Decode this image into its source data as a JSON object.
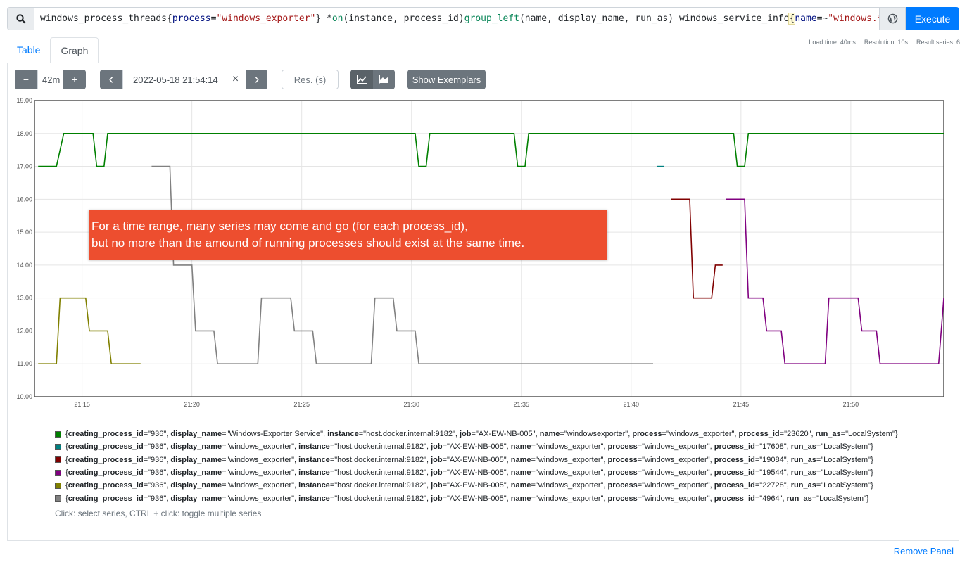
{
  "query": {
    "tokens": [
      {
        "t": "windows_process_threads ",
        "c": ""
      },
      {
        "t": "{",
        "c": ""
      },
      {
        "t": "process",
        "c": "q-lbl"
      },
      {
        "t": "=",
        "c": ""
      },
      {
        "t": "\"windows_exporter\"",
        "c": "q-str"
      },
      {
        "t": "} * ",
        "c": ""
      },
      {
        "t": "on",
        "c": "q-fn"
      },
      {
        "t": "(instance, process_id) ",
        "c": ""
      },
      {
        "t": "group_left",
        "c": "q-fn"
      },
      {
        "t": "(name, display_name, run_as) windows_service_info ",
        "c": ""
      },
      {
        "t": "{",
        "c": "q-brace"
      },
      {
        "t": "name",
        "c": "q-lbl"
      },
      {
        "t": "=~",
        "c": ""
      },
      {
        "t": "\"windows.*exporter\"",
        "c": "q-str"
      },
      {
        "t": "}",
        "c": "q-brace"
      }
    ],
    "execute_label": "Execute",
    "search_icon": "search-icon",
    "globe_icon": "globe-icon"
  },
  "tabs": [
    {
      "label": "Table",
      "active": false
    },
    {
      "label": "Graph",
      "active": true
    }
  ],
  "meta": {
    "load_time": "Load time: 40ms",
    "resolution": "Resolution: 10s",
    "result_series": "Result series: 6"
  },
  "controls": {
    "minus": "−",
    "range": "42m",
    "plus": "+",
    "prev": "‹",
    "end_time": "2022-05-18 21:54:14",
    "clear": "×",
    "next": "›",
    "res_placeholder": "Res. (s)",
    "line_icon": "line-chart-icon",
    "stacked_icon": "area-chart-icon",
    "exemplars": "Show Exemplars"
  },
  "callout": {
    "line1": "For a time range, many series may come and go (for each process_id),",
    "line2": "but no more than the amound of running processes should exist at the same time."
  },
  "chart_data": {
    "type": "line",
    "ylim": [
      10,
      19
    ],
    "yticks": [
      "10.00",
      "11.00",
      "12.00",
      "13.00",
      "14.00",
      "15.00",
      "16.00",
      "17.00",
      "18.00",
      "19.00"
    ],
    "xlim": [
      "21:12:50",
      "21:54:14"
    ],
    "xticks": [
      "21:15",
      "21:20",
      "21:25",
      "21:30",
      "21:35",
      "21:40",
      "21:45",
      "21:50"
    ],
    "grid": true,
    "series": [
      {
        "color": "#008000",
        "points": [
          [
            "21:13:00",
            17
          ],
          [
            "21:13:50",
            17
          ],
          [
            "21:14:10",
            18
          ],
          [
            "21:15:30",
            18
          ],
          [
            "21:15:40",
            17
          ],
          [
            "21:16:00",
            17
          ],
          [
            "21:16:10",
            18
          ],
          [
            "21:30:10",
            18
          ],
          [
            "21:30:20",
            17
          ],
          [
            "21:30:40",
            17
          ],
          [
            "21:30:50",
            18
          ],
          [
            "21:34:40",
            18
          ],
          [
            "21:34:50",
            17
          ],
          [
            "21:35:10",
            17
          ],
          [
            "21:35:20",
            18
          ],
          [
            "21:44:40",
            18
          ],
          [
            "21:44:50",
            17
          ],
          [
            "21:45:10",
            17
          ],
          [
            "21:45:20",
            18
          ],
          [
            "21:54:14",
            18
          ]
        ]
      },
      {
        "color": "#008080",
        "points": [
          [
            "21:41:10",
            17
          ],
          [
            "21:41:30",
            17
          ]
        ]
      },
      {
        "color": "#800000",
        "points": [
          [
            "21:41:50",
            16
          ],
          [
            "21:42:40",
            16
          ],
          [
            "21:42:50",
            13
          ],
          [
            "21:43:40",
            13
          ],
          [
            "21:43:50",
            14
          ],
          [
            "21:44:10",
            14
          ]
        ]
      },
      {
        "color": "#800080",
        "points": [
          [
            "21:44:20",
            16
          ],
          [
            "21:45:10",
            16
          ],
          [
            "21:45:20",
            13
          ],
          [
            "21:46:00",
            13
          ],
          [
            "21:46:10",
            12
          ],
          [
            "21:46:50",
            12
          ],
          [
            "21:47:00",
            11
          ],
          [
            "21:48:50",
            11
          ],
          [
            "21:49:00",
            13
          ],
          [
            "21:50:20",
            13
          ],
          [
            "21:50:30",
            12
          ],
          [
            "21:51:10",
            12
          ],
          [
            "21:51:20",
            11
          ],
          [
            "21:54:00",
            11
          ],
          [
            "21:54:14",
            13
          ]
        ]
      },
      {
        "color": "#808000",
        "points": [
          [
            "21:13:00",
            11
          ],
          [
            "21:13:50",
            11
          ],
          [
            "21:14:00",
            13
          ],
          [
            "21:15:10",
            13
          ],
          [
            "21:15:20",
            12
          ],
          [
            "21:16:10",
            12
          ],
          [
            "21:16:20",
            11
          ],
          [
            "21:17:40",
            11
          ]
        ]
      },
      {
        "color": "#808080",
        "points": [
          [
            "21:18:10",
            17
          ],
          [
            "21:19:00",
            17
          ],
          [
            "21:19:10",
            14
          ],
          [
            "21:20:00",
            14
          ],
          [
            "21:20:10",
            12
          ],
          [
            "21:21:00",
            12
          ],
          [
            "21:21:10",
            11
          ],
          [
            "21:23:00",
            11
          ],
          [
            "21:23:10",
            13
          ],
          [
            "21:24:30",
            13
          ],
          [
            "21:24:40",
            12
          ],
          [
            "21:25:30",
            12
          ],
          [
            "21:25:40",
            11
          ],
          [
            "21:28:10",
            11
          ],
          [
            "21:28:20",
            13
          ],
          [
            "21:29:10",
            13
          ],
          [
            "21:29:20",
            12
          ],
          [
            "21:30:10",
            12
          ],
          [
            "21:30:20",
            11
          ],
          [
            "21:41:00",
            11
          ]
        ]
      }
    ]
  },
  "legend": [
    {
      "color": "#008000",
      "parts": [
        [
          "creating_process_id",
          "936"
        ],
        [
          "display_name",
          "Windows-Exporter Service"
        ],
        [
          "instance",
          "host.docker.internal:9182"
        ],
        [
          "job",
          "AX-EW-NB-005"
        ],
        [
          "name",
          "windowsexporter"
        ],
        [
          "process",
          "windows_exporter"
        ],
        [
          "process_id",
          "23620"
        ],
        [
          "run_as",
          "LocalSystem"
        ]
      ]
    },
    {
      "color": "#008080",
      "parts": [
        [
          "creating_process_id",
          "936"
        ],
        [
          "display_name",
          "windows_exporter"
        ],
        [
          "instance",
          "host.docker.internal:9182"
        ],
        [
          "job",
          "AX-EW-NB-005"
        ],
        [
          "name",
          "windows_exporter"
        ],
        [
          "process",
          "windows_exporter"
        ],
        [
          "process_id",
          "17608"
        ],
        [
          "run_as",
          "LocalSystem"
        ]
      ]
    },
    {
      "color": "#800000",
      "parts": [
        [
          "creating_process_id",
          "936"
        ],
        [
          "display_name",
          "windows_exporter"
        ],
        [
          "instance",
          "host.docker.internal:9182"
        ],
        [
          "job",
          "AX-EW-NB-005"
        ],
        [
          "name",
          "windows_exporter"
        ],
        [
          "process",
          "windows_exporter"
        ],
        [
          "process_id",
          "19084"
        ],
        [
          "run_as",
          "LocalSystem"
        ]
      ]
    },
    {
      "color": "#800080",
      "parts": [
        [
          "creating_process_id",
          "936"
        ],
        [
          "display_name",
          "windows_exporter"
        ],
        [
          "instance",
          "host.docker.internal:9182"
        ],
        [
          "job",
          "AX-EW-NB-005"
        ],
        [
          "name",
          "windows_exporter"
        ],
        [
          "process",
          "windows_exporter"
        ],
        [
          "process_id",
          "19544"
        ],
        [
          "run_as",
          "LocalSystem"
        ]
      ]
    },
    {
      "color": "#808000",
      "parts": [
        [
          "creating_process_id",
          "936"
        ],
        [
          "display_name",
          "windows_exporter"
        ],
        [
          "instance",
          "host.docker.internal:9182"
        ],
        [
          "job",
          "AX-EW-NB-005"
        ],
        [
          "name",
          "windows_exporter"
        ],
        [
          "process",
          "windows_exporter"
        ],
        [
          "process_id",
          "22728"
        ],
        [
          "run_as",
          "LocalSystem"
        ]
      ]
    },
    {
      "color": "#808080",
      "parts": [
        [
          "creating_process_id",
          "936"
        ],
        [
          "display_name",
          "windows_exporter"
        ],
        [
          "instance",
          "host.docker.internal:9182"
        ],
        [
          "job",
          "AX-EW-NB-005"
        ],
        [
          "name",
          "windows_exporter"
        ],
        [
          "process",
          "windows_exporter"
        ],
        [
          "process_id",
          "4964"
        ],
        [
          "run_as",
          "LocalSystem"
        ]
      ]
    }
  ],
  "hint": "Click: select series, CTRL + click: toggle multiple series",
  "remove_panel": "Remove Panel"
}
